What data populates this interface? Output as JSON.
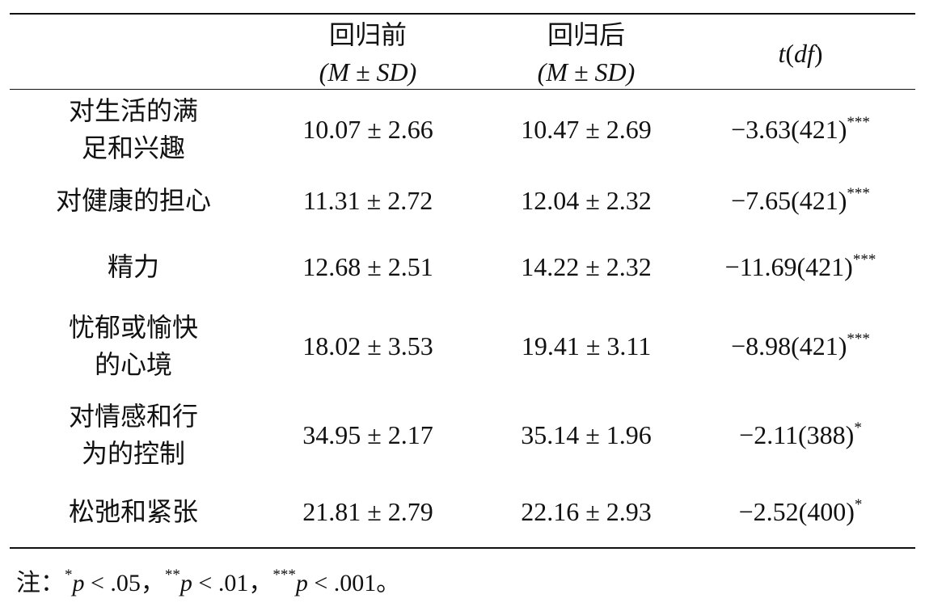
{
  "table": {
    "header": [
      {
        "title": "回归前",
        "sub": "(M ± SD)"
      },
      {
        "title": "回归后",
        "sub": "(M ± SD)"
      },
      {
        "parts": [
          "t",
          "(",
          "df",
          ")"
        ]
      }
    ],
    "rows": [
      {
        "label": [
          "对生活的满",
          "足和兴趣"
        ],
        "before": "10.07 ± 2.66",
        "after": "10.47 ± 2.69",
        "t": "−3.63(421)",
        "sig": "***"
      },
      {
        "label": [
          "对健康的担心"
        ],
        "before": "11.31 ± 2.72",
        "after": "12.04 ± 2.32",
        "t": "−7.65(421)",
        "sig": "***"
      },
      {
        "label": [
          "精力"
        ],
        "before": "12.68 ± 2.51",
        "after": "14.22 ± 2.32",
        "t": "−11.69(421)",
        "sig": "***"
      },
      {
        "label": [
          "忧郁或愉快",
          "的心境"
        ],
        "before": "18.02 ± 3.53",
        "after": "19.41 ± 3.11",
        "t": "−8.98(421)",
        "sig": "***"
      },
      {
        "label": [
          "对情感和行",
          "为的控制"
        ],
        "before": "34.95 ± 2.17",
        "after": "35.14 ± 1.96",
        "t": "−2.11(388)",
        "sig": "*"
      },
      {
        "label": [
          "松弛和紧张"
        ],
        "before": "21.81 ± 2.79",
        "after": "22.16 ± 2.93",
        "t": "−2.52(400)",
        "sig": "*"
      }
    ]
  },
  "note": {
    "prefix": "注：",
    "items": [
      {
        "sig": "*",
        "var": "p",
        "cond": " < .05",
        "sep": "，"
      },
      {
        "sig": "**",
        "var": "p",
        "cond": " < .01",
        "sep": "，"
      },
      {
        "sig": "***",
        "var": "p",
        "cond": " < .001",
        "sep": "。"
      }
    ]
  }
}
